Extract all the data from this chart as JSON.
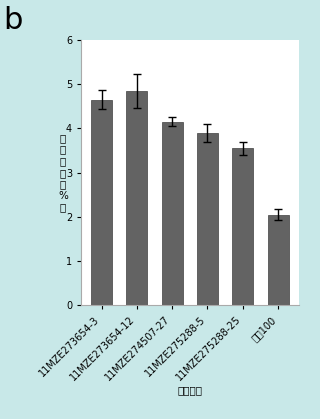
{
  "categories": [
    "11MZE273654-3",
    "11MZE273654-12",
    "11MZE274507-27",
    "11MZE275288-5",
    "11MZE275288-25",
    "中烟100"
  ],
  "values": [
    4.65,
    4.85,
    4.15,
    3.9,
    3.55,
    2.05
  ],
  "errors": [
    0.22,
    0.38,
    0.1,
    0.2,
    0.15,
    0.12
  ],
  "bar_color": "#636363",
  "bar_edge_color": "#404040",
  "ylabel_chars": [
    "烟",
    "碱",
    "含",
    "量",
    "（",
    "%",
    "）"
  ],
  "xlabel": "品株编号",
  "label_b": "b",
  "ylim": [
    0,
    6
  ],
  "yticks": [
    0,
    1,
    2,
    3,
    4,
    5,
    6
  ],
  "background_color": "#b8dede",
  "plot_bg_color": "#ffffff",
  "outer_bg_color": "#c8e8e8",
  "label_b_fontsize": 22,
  "axis_fontsize": 7.5,
  "tick_fontsize": 7
}
